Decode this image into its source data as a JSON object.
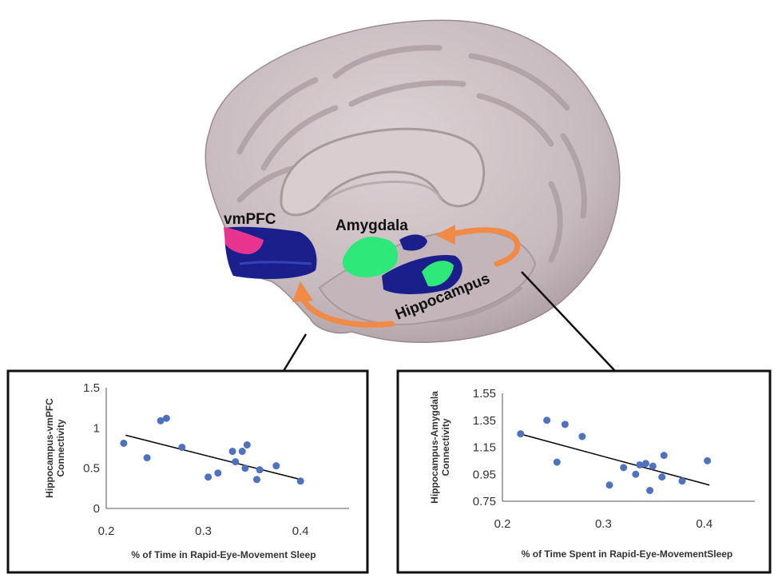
{
  "labels": {
    "vmpfc": "vmPFC",
    "amygdala": "Amygdala",
    "hippocampus": "Hippocampus"
  },
  "colors": {
    "brain": "#c9bcc0",
    "blue_region": "#1b1f8c",
    "green_region": "#2ee87a",
    "pink_region": "#e8338f",
    "arrow": "#f08a45",
    "points": "#4e72c0"
  },
  "chart_data": [
    {
      "type": "scatter",
      "title": "",
      "xlabel": "% of Time in Rapid-Eye-Movement Sleep",
      "ylabel_lines": [
        "Hippocampus-vmPFC",
        "Connectivity"
      ],
      "xlim": [
        0.2,
        0.45
      ],
      "ylim": [
        0,
        1.5
      ],
      "xticks": [
        "0.2",
        "0.3",
        "0.4"
      ],
      "yticks": [
        "0",
        "0.5",
        "1",
        "1.5"
      ],
      "grid": false,
      "trendline": {
        "x": [
          0.22,
          0.4
        ],
        "y": [
          0.91,
          0.36
        ]
      },
      "points": [
        {
          "x": 0.218,
          "y": 0.81
        },
        {
          "x": 0.242,
          "y": 0.63
        },
        {
          "x": 0.256,
          "y": 1.09
        },
        {
          "x": 0.262,
          "y": 1.12
        },
        {
          "x": 0.278,
          "y": 0.76
        },
        {
          "x": 0.305,
          "y": 0.39
        },
        {
          "x": 0.315,
          "y": 0.44
        },
        {
          "x": 0.33,
          "y": 0.71
        },
        {
          "x": 0.333,
          "y": 0.58
        },
        {
          "x": 0.34,
          "y": 0.71
        },
        {
          "x": 0.343,
          "y": 0.5
        },
        {
          "x": 0.345,
          "y": 0.79
        },
        {
          "x": 0.355,
          "y": 0.36
        },
        {
          "x": 0.358,
          "y": 0.48
        },
        {
          "x": 0.375,
          "y": 0.53
        },
        {
          "x": 0.4,
          "y": 0.34
        }
      ]
    },
    {
      "type": "scatter",
      "title": "",
      "xlabel": "% of Time Spent in Rapid-Eye-MovementSleep",
      "ylabel_lines": [
        "Hippocampus-Amygdala",
        "Connectivity"
      ],
      "xlim": [
        0.2,
        0.45
      ],
      "ylim": [
        0.75,
        1.55
      ],
      "xticks": [
        "0.2",
        "0.3",
        "0.4"
      ],
      "yticks": [
        "0.75",
        "0.95",
        "1.15",
        "1.35",
        "1.55"
      ],
      "grid": false,
      "trendline": {
        "x": [
          0.217,
          0.405
        ],
        "y": [
          1.25,
          0.87
        ]
      },
      "points": [
        {
          "x": 0.218,
          "y": 1.25
        },
        {
          "x": 0.244,
          "y": 1.35
        },
        {
          "x": 0.254,
          "y": 1.04
        },
        {
          "x": 0.262,
          "y": 1.32
        },
        {
          "x": 0.279,
          "y": 1.23
        },
        {
          "x": 0.306,
          "y": 0.87
        },
        {
          "x": 0.32,
          "y": 1.0
        },
        {
          "x": 0.332,
          "y": 0.95
        },
        {
          "x": 0.336,
          "y": 1.02
        },
        {
          "x": 0.342,
          "y": 1.03
        },
        {
          "x": 0.346,
          "y": 0.83
        },
        {
          "x": 0.349,
          "y": 1.01
        },
        {
          "x": 0.358,
          "y": 0.93
        },
        {
          "x": 0.36,
          "y": 1.09
        },
        {
          "x": 0.378,
          "y": 0.9
        },
        {
          "x": 0.403,
          "y": 1.05
        }
      ]
    }
  ]
}
